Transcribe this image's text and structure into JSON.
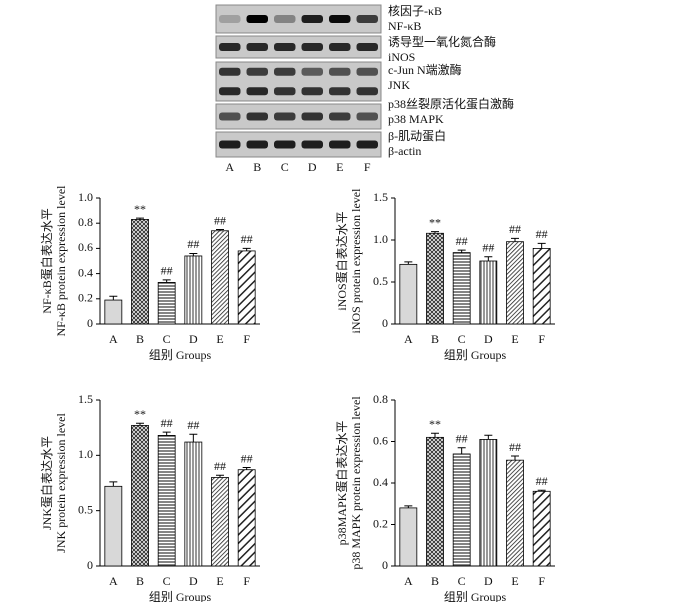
{
  "blot": {
    "labels": [
      "核因子-κB",
      "NF-κB",
      "诱导型一氧化氮合酶",
      "iNOS",
      "c-Jun N端激酶",
      "JNK",
      "p38丝裂原活化蛋白激酶",
      "p38 MAPK",
      "β-肌动蛋白",
      "β-actin"
    ],
    "lanes": [
      "A",
      "B",
      "C",
      "D",
      "E",
      "F"
    ]
  },
  "chart_data": [
    {
      "type": "bar",
      "ylabel": [
        "NF-κB蛋白表达水平",
        "NF-κB protein expression level"
      ],
      "xlabel": "组别 Groups",
      "categories": [
        "A",
        "B",
        "C",
        "D",
        "E",
        "F"
      ],
      "values": [
        0.19,
        0.83,
        0.33,
        0.54,
        0.74,
        0.58
      ],
      "errors": [
        0.03,
        0.01,
        0.02,
        0.02,
        0.01,
        0.02
      ],
      "annotations": [
        null,
        "**",
        "##",
        "##",
        "##",
        "##"
      ],
      "ylim": [
        0,
        1
      ],
      "yticks": [
        0,
        0.2,
        0.4,
        0.6,
        0.8,
        {
          "value": 1,
          "label": "1.0"
        }
      ]
    },
    {
      "type": "bar",
      "ylabel": [
        "iNOS蛋白表达水平",
        "iNOS protein expression level"
      ],
      "xlabel": "组别 Groups",
      "categories": [
        "A",
        "B",
        "C",
        "D",
        "E",
        "F"
      ],
      "values": [
        0.71,
        1.08,
        0.85,
        0.75,
        0.98,
        0.9
      ],
      "errors": [
        0.03,
        0.02,
        0.03,
        0.05,
        0.04,
        0.06
      ],
      "annotations": [
        null,
        "**",
        "##",
        "##",
        "##",
        "##"
      ],
      "ylim": [
        0,
        1.5
      ],
      "yticks": [
        0,
        0.5,
        {
          "value": 1,
          "label": "1.0"
        },
        1.5
      ]
    },
    {
      "type": "bar",
      "ylabel": [
        "JNK蛋白表达水平",
        "JNK protein expression level"
      ],
      "xlabel": "组别 Groups",
      "categories": [
        "A",
        "B",
        "C",
        "D",
        "E",
        "F"
      ],
      "values": [
        0.72,
        1.27,
        1.18,
        1.12,
        0.8,
        0.87
      ],
      "errors": [
        0.04,
        0.02,
        0.03,
        0.07,
        0.02,
        0.02
      ],
      "annotations": [
        null,
        "**",
        "##",
        "##",
        "##",
        "##"
      ],
      "ylim": [
        0,
        1.5
      ],
      "yticks": [
        0,
        0.5,
        {
          "value": 1,
          "label": "1.0"
        },
        1.5
      ]
    },
    {
      "type": "bar",
      "ylabel": [
        "p38MAPK蛋白表达水平",
        "p38 MAPK protein expression level"
      ],
      "xlabel": "组别 Groups",
      "categories": [
        "A",
        "B",
        "C",
        "D",
        "E",
        "F"
      ],
      "values": [
        0.28,
        0.62,
        0.54,
        0.61,
        0.51,
        0.36
      ],
      "errors": [
        0.01,
        0.02,
        0.03,
        0.02,
        0.02,
        0.005
      ],
      "annotations": [
        null,
        "**",
        "##",
        null,
        "##",
        "##"
      ],
      "ylim": [
        0,
        0.8
      ],
      "yticks": [
        0,
        0.2,
        0.4,
        0.6,
        0.8
      ]
    }
  ]
}
